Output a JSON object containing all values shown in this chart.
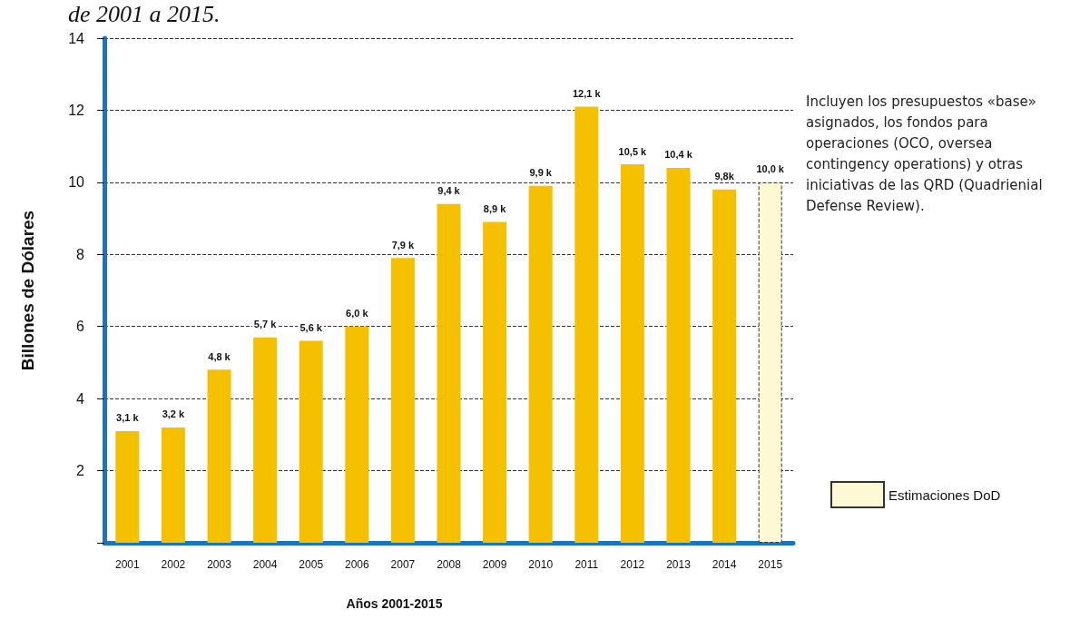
{
  "chart_data": {
    "type": "bar",
    "xlabel": "Años 2001-2015",
    "ylabel": "Billones de Dólares",
    "categories": [
      "2001",
      "2002",
      "2003",
      "2004",
      "2005",
      "2006",
      "2007",
      "2008",
      "2009",
      "2010",
      "2011",
      "2012",
      "2013",
      "2014",
      "2015"
    ],
    "series": [
      {
        "color": "#f5c000",
        "values": [
          3.1,
          3.2,
          4.8,
          5.7,
          5.6,
          6.0,
          7.9,
          9.4,
          8.9,
          9.9,
          12.1,
          10.5,
          10.4,
          9.8,
          null
        ],
        "value_labels": [
          "3,1 k",
          "3,2 k",
          "4,8 k",
          "5,7 k",
          "5,6 k",
          "6,0 k",
          "7,9 k",
          "9,4 k",
          "8,9 k",
          "9,9 k",
          "12,1 k",
          "10,5 k",
          "10,4 k",
          "9,8k",
          null
        ]
      },
      {
        "name": "Estimaciones DoD",
        "color": "#fdf9d2",
        "line_style": "dashed",
        "values": [
          null,
          null,
          null,
          null,
          null,
          null,
          null,
          null,
          null,
          null,
          null,
          null,
          null,
          null,
          10.0
        ],
        "value_labels": [
          null,
          null,
          null,
          null,
          null,
          null,
          null,
          null,
          null,
          null,
          null,
          null,
          null,
          null,
          "10,0 k"
        ]
      }
    ],
    "ylim": [
      0,
      14
    ],
    "yticks": [
      {
        "value": 0,
        "label": null
      },
      2,
      4,
      6,
      8,
      10,
      12,
      14
    ],
    "grid": "y",
    "legend": "right",
    "annotations": [
      "de 2001 a 2015.",
      "Incluyen los presupuestos «base» asignados, los fondos para operaciones (OCO, oversea contingency operations) y otras iniciativas de las QRD (Quadrienial Defense Review)."
    ]
  }
}
